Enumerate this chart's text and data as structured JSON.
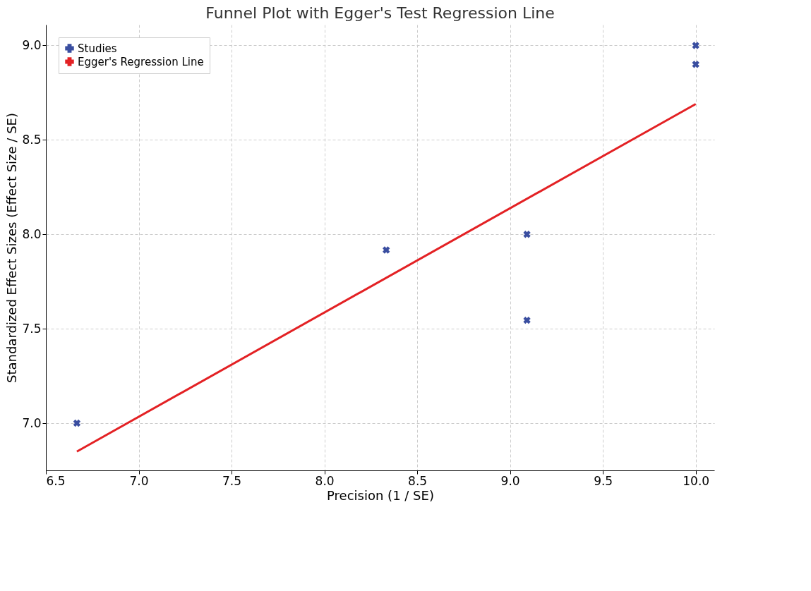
{
  "chart_data": {
    "type": "scatter",
    "title": "Funnel Plot with Egger's Test Regression Line",
    "xlabel": "Precision (1 / SE)",
    "ylabel": "Standardized Effect Sizes (Effect Size / SE)",
    "series": [
      {
        "name": "Studies",
        "color": "#3a4ea0",
        "marker": "cross",
        "x": [
          6.667,
          8.333,
          9.091,
          9.091,
          10.0,
          10.0
        ],
        "values": [
          7.0,
          7.917,
          8.0,
          7.545,
          9.0,
          8.9
        ]
      },
      {
        "name": "Egger's Regression Line",
        "type": "line",
        "color": "#e32124",
        "line_style": "solid",
        "x": [
          6.667,
          10.0
        ],
        "values": [
          6.85,
          8.69
        ]
      }
    ],
    "xlim": [
      6.5,
      10.1
    ],
    "ylim": [
      6.75,
      9.11
    ],
    "xticks": [
      6.5,
      {
        "value": 7,
        "label": "7.0"
      },
      7.5,
      {
        "value": 8,
        "label": "8.0"
      },
      8.5,
      {
        "value": 9,
        "label": "9.0"
      },
      9.5,
      {
        "value": 10,
        "label": "10.0"
      }
    ],
    "yticks": [
      {
        "value": 7,
        "label": "7.0"
      },
      7.5,
      {
        "value": 8,
        "label": "8.0"
      },
      8.5,
      {
        "value": 9,
        "label": "9.0"
      }
    ],
    "grid": true,
    "legend": "top left"
  }
}
